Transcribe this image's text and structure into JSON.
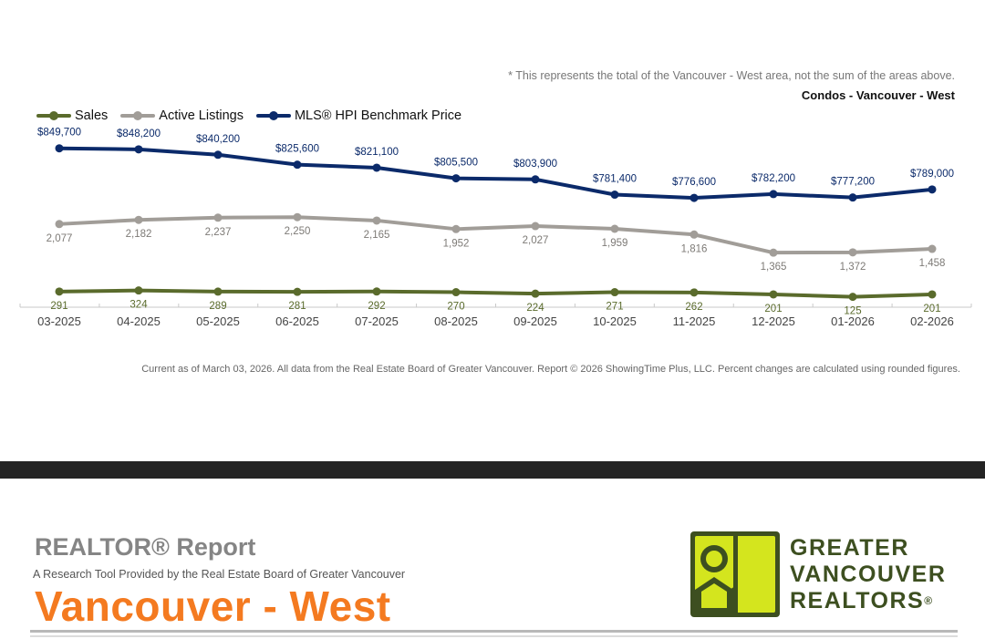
{
  "header": {
    "note": "* This represents the total of the Vancouver - West area, not the sum of the areas above.",
    "subtitle": "Condos - Vancouver - West"
  },
  "chart_data": {
    "type": "line",
    "categories": [
      "03-2025",
      "04-2025",
      "05-2025",
      "06-2025",
      "07-2025",
      "08-2025",
      "09-2025",
      "10-2025",
      "11-2025",
      "12-2025",
      "01-2026",
      "02-2026"
    ],
    "series": [
      {
        "name": "Sales",
        "color": "#5a6b2c",
        "values": [
          291,
          324,
          289,
          281,
          292,
          270,
          224,
          271,
          262,
          201,
          125,
          201
        ],
        "labels": [
          "291",
          "324",
          "289",
          "281",
          "292",
          "270",
          "224",
          "271",
          "262",
          "201",
          "125",
          "201"
        ]
      },
      {
        "name": "Active Listings",
        "color": "#a19d98",
        "values": [
          2077,
          2182,
          2237,
          2250,
          2165,
          1952,
          2027,
          1959,
          1816,
          1365,
          1372,
          1458
        ],
        "labels": [
          "2,077",
          "2,182",
          "2,237",
          "2,250",
          "2,165",
          "1,952",
          "2,027",
          "1,959",
          "1,816",
          "1,365",
          "1,372",
          "1,458"
        ]
      },
      {
        "name": "MLS® HPI Benchmark Price",
        "color": "#0b2a6a",
        "values": [
          849700,
          848200,
          840200,
          825600,
          821100,
          805500,
          803900,
          781400,
          776600,
          782200,
          777200,
          789000
        ],
        "labels": [
          "$849,700",
          "$848,200",
          "$840,200",
          "$825,600",
          "$821,100",
          "$805,500",
          "$803,900",
          "$781,400",
          "$776,600",
          "$782,200",
          "$777,200",
          "$789,000"
        ]
      }
    ]
  },
  "footer": {
    "note": "Current as of March 03, 2026. All data from the Real Estate Board of Greater Vancouver.  Report © 2026 ShowingTime Plus, LLC. Percent changes are calculated using rounded figures."
  },
  "report": {
    "title": "REALTOR® Report",
    "description": "A Research Tool Provided by the Real Estate Board of Greater Vancouver",
    "area": "Vancouver - West"
  },
  "brand": {
    "line1": "GREATER",
    "line2": "VANCOUVER",
    "line3": "REALTORS",
    "reg_mark": "®"
  }
}
